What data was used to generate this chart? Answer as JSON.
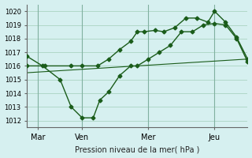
{
  "xlabel": "Pression niveau de la mer( hPa )",
  "bg_color": "#d6f0f0",
  "grid_color": "#b0d8c8",
  "line_color": "#1a5c1a",
  "xlim": [
    0,
    10
  ],
  "ylim": [
    1011.5,
    1020.5
  ],
  "yticks": [
    1012,
    1013,
    1014,
    1015,
    1016,
    1017,
    1018,
    1019,
    1020
  ],
  "xtick_positions": [
    0.5,
    2.5,
    5.5,
    8.5
  ],
  "xtick_labels": [
    "Mar",
    "Ven",
    "Mer",
    "Jeu"
  ],
  "vline_positions": [
    0.5,
    2.5,
    5.5,
    8.5
  ],
  "series1": {
    "x": [
      0.0,
      0.7,
      1.5,
      2.0,
      2.5,
      3.0,
      3.3,
      3.7,
      4.2,
      4.7,
      5.0,
      5.5,
      6.0,
      6.5,
      7.0,
      7.5,
      8.0,
      8.5,
      9.0,
      9.5,
      10.0
    ],
    "y": [
      1016.7,
      1016.0,
      1015.0,
      1013.0,
      1012.2,
      1012.2,
      1013.5,
      1014.1,
      1015.3,
      1016.0,
      1016.0,
      1016.5,
      1017.0,
      1017.5,
      1018.5,
      1018.5,
      1019.0,
      1019.1,
      1019.0,
      1018.0,
      1016.3
    ]
  },
  "series2": {
    "x": [
      0.0,
      0.8,
      2.0,
      2.5,
      3.2,
      3.7,
      4.2,
      4.7,
      5.0,
      5.3,
      5.8,
      6.2,
      6.7,
      7.2,
      7.7,
      8.2,
      8.5,
      9.0,
      9.5,
      10.0
    ],
    "y": [
      1016.0,
      1016.0,
      1016.0,
      1016.0,
      1016.0,
      1016.5,
      1017.2,
      1017.8,
      1018.5,
      1018.5,
      1018.6,
      1018.5,
      1018.8,
      1019.5,
      1019.5,
      1019.2,
      1020.0,
      1019.2,
      1018.1,
      1016.5
    ]
  },
  "series3": {
    "x": [
      0.0,
      10.0
    ],
    "y": [
      1015.5,
      1016.5
    ]
  }
}
